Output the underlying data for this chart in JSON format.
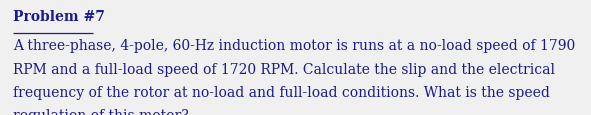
{
  "title": "Problem #7",
  "body_lines": [
    "A three-phase, 4-pole, 60-Hz induction motor is runs at a no-load speed of 1790",
    "RPM and a full-load speed of 1720 RPM. Calculate the slip and the electrical",
    "frequency of the rotor at no-load and full-load conditions. What is the speed",
    "regulation of this motor?"
  ],
  "font_family": "serif",
  "title_fontsize": 10,
  "body_fontsize": 10,
  "text_color": "#1a1a8c",
  "background_color": "#f0f0f0",
  "fig_width": 5.91,
  "fig_height": 1.16
}
